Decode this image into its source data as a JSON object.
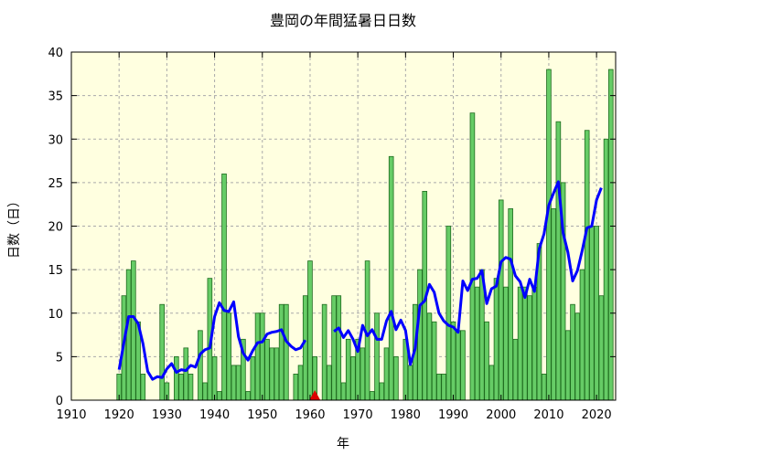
{
  "chart_data": {
    "type": "bar",
    "title": "豊岡の年間猛暑日日数",
    "xlabel": "年",
    "ylabel": "日数（日）",
    "xlim": [
      1910,
      2024
    ],
    "ylim": [
      0,
      40
    ],
    "x_ticks": [
      1910,
      1920,
      1930,
      1940,
      1950,
      1960,
      1970,
      1980,
      1990,
      2000,
      2010,
      2020
    ],
    "y_ticks": [
      0,
      5,
      10,
      15,
      20,
      25,
      30,
      35,
      40
    ],
    "grid": true,
    "colors": {
      "plot_background": "#ffffe0",
      "bar_fill": "#66cc66",
      "bar_edge": "#1f6b1f",
      "moving_average": "#0000ff",
      "marker": "#dd0000",
      "grid": "#aaaaaa"
    },
    "series": [
      {
        "type": "bar",
        "years": [
          1920,
          1921,
          1922,
          1923,
          1924,
          1925,
          1926,
          1927,
          1928,
          1929,
          1930,
          1931,
          1932,
          1933,
          1934,
          1935,
          1936,
          1937,
          1938,
          1939,
          1940,
          1941,
          1942,
          1943,
          1944,
          1945,
          1946,
          1947,
          1948,
          1949,
          1950,
          1951,
          1952,
          1953,
          1954,
          1955,
          1956,
          1957,
          1958,
          1959,
          1960,
          1961,
          1962,
          1963,
          1964,
          1965,
          1966,
          1967,
          1968,
          1969,
          1970,
          1971,
          1972,
          1973,
          1974,
          1975,
          1976,
          1977,
          1978,
          1979,
          1980,
          1981,
          1982,
          1983,
          1984,
          1985,
          1986,
          1987,
          1988,
          1989,
          1990,
          1991,
          1992,
          1993,
          1994,
          1995,
          1996,
          1997,
          1998,
          1999,
          2000,
          2001,
          2002,
          2003,
          2004,
          2005,
          2006,
          2007,
          2008,
          2009,
          2010,
          2011,
          2012,
          2013,
          2014,
          2015,
          2016,
          2017,
          2018,
          2019,
          2020,
          2021,
          2022,
          2023
        ],
        "values": [
          3,
          12,
          15,
          16,
          9,
          3,
          0,
          0,
          0,
          11,
          2,
          0,
          5,
          3,
          6,
          3,
          0,
          8,
          2,
          14,
          5,
          1,
          26,
          10,
          4,
          4,
          7,
          1,
          5,
          10,
          10,
          7,
          6,
          6,
          11,
          11,
          0,
          3,
          4,
          12,
          16,
          5,
          0,
          11,
          4,
          12,
          12,
          2,
          7,
          5,
          7,
          6,
          16,
          1,
          10,
          2,
          6,
          28,
          5,
          0,
          7,
          4,
          11,
          15,
          24,
          10,
          9,
          3,
          3,
          20,
          9,
          8,
          8,
          0,
          33,
          13,
          15,
          9,
          4,
          14,
          23,
          13,
          22,
          7,
          13,
          13,
          12,
          13,
          18,
          3,
          38,
          22,
          32,
          25,
          8,
          11,
          10,
          15,
          31,
          20,
          20,
          12,
          30,
          38
        ]
      },
      {
        "type": "line",
        "description": "5-year moving average",
        "start_year": 1920,
        "values": [
          3.5,
          6.6,
          9.6,
          9.6,
          8.8,
          6.5,
          3.3,
          2.4,
          2.7,
          2.6,
          3.6,
          4.2,
          3.2,
          3.5,
          3.4,
          4.0,
          3.8,
          5.3,
          5.8,
          6.0,
          9.6,
          11.2,
          10.3,
          10.2,
          11.3,
          7.3,
          5.4,
          4.6,
          5.7,
          6.6,
          6.7,
          7.6,
          7.8,
          7.9,
          8.1,
          6.8,
          6.2,
          5.8,
          6.0,
          6.9,
          null,
          null,
          null,
          null,
          null,
          7.9,
          8.3,
          7.2,
          8.0,
          7.0,
          5.6,
          8.6,
          7.4,
          8.1,
          7.0,
          7.0,
          9.1,
          10.2,
          8.1,
          9.2,
          8.0,
          4.1,
          5.9,
          10.9,
          11.4,
          13.3,
          12.4,
          10.0,
          9.1,
          8.6,
          8.4,
          7.8,
          13.7,
          12.6,
          13.9,
          14.0,
          14.9,
          11.1,
          12.8,
          13.1,
          15.9,
          16.4,
          16.2,
          14.3,
          13.6,
          11.8,
          13.9,
          12.5,
          17.4,
          19.1,
          22.4,
          23.8,
          25.1,
          19.2,
          17.0,
          13.7,
          14.9,
          17.2,
          19.8,
          20.0,
          23.0,
          24.4,
          null,
          null
        ]
      }
    ],
    "annotations": [
      {
        "type": "triangle-marker",
        "x": 1961,
        "y": 0
      }
    ]
  }
}
